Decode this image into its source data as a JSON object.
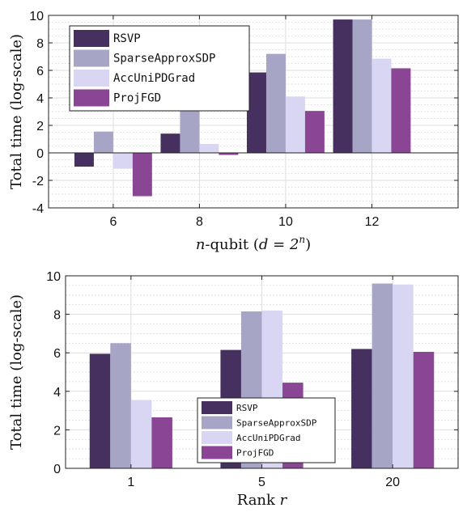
{
  "chart_data": [
    {
      "type": "bar",
      "categories": [
        "6",
        "8",
        "10",
        "12"
      ],
      "xlim": [
        4.5,
        14
      ],
      "xticks": [
        6,
        8,
        10,
        12
      ],
      "ylim": [
        -4,
        10
      ],
      "yticks": [
        -4,
        -2,
        0,
        2,
        4,
        6,
        8,
        10
      ],
      "ylabel": "Total time (log-scale)",
      "xlabel_main": "n-qubit (d = 2^n)",
      "xlabel_italic": "n",
      "xlabel_rest": "-qubit (",
      "xlabel_eq": "d = 2",
      "xlabel_sup": "n",
      "xlabel_close": ")",
      "grid": true,
      "legend_position": "top-left",
      "series": [
        {
          "name": "RSVP",
          "color": "#46305f",
          "values": [
            -1.0,
            1.4,
            5.85,
            9.7
          ]
        },
        {
          "name": "SparseApproxSDP",
          "color": "#a7a5c6",
          "values": [
            1.55,
            4.2,
            7.2,
            9.7
          ]
        },
        {
          "name": "AccUniPDGrad",
          "color": "#d8d6f3",
          "values": [
            -1.15,
            0.65,
            4.1,
            6.85
          ]
        },
        {
          "name": "ProjFGD",
          "color": "#8b4595",
          "values": [
            -3.15,
            -0.15,
            3.05,
            6.15
          ]
        }
      ]
    },
    {
      "type": "bar",
      "categories": [
        "1",
        "5",
        "20"
      ],
      "ylim": [
        0,
        10
      ],
      "yticks": [
        0,
        2,
        4,
        6,
        8,
        10
      ],
      "ylabel": "Total time (log-scale)",
      "xlabel_rest": "Rank ",
      "xlabel_italic": "r",
      "grid": true,
      "legend_position": "bottom-center",
      "series": [
        {
          "name": "RSVP",
          "color": "#46305f",
          "values": [
            5.95,
            6.15,
            6.2
          ]
        },
        {
          "name": "SparseApproxSDP",
          "color": "#a7a5c6",
          "values": [
            6.5,
            8.15,
            9.6
          ]
        },
        {
          "name": "AccUniPDGrad",
          "color": "#d8d6f3",
          "values": [
            3.55,
            8.2,
            9.55
          ]
        },
        {
          "name": "ProjFGD",
          "color": "#8b4595",
          "values": [
            2.65,
            4.45,
            6.05
          ]
        }
      ]
    }
  ]
}
